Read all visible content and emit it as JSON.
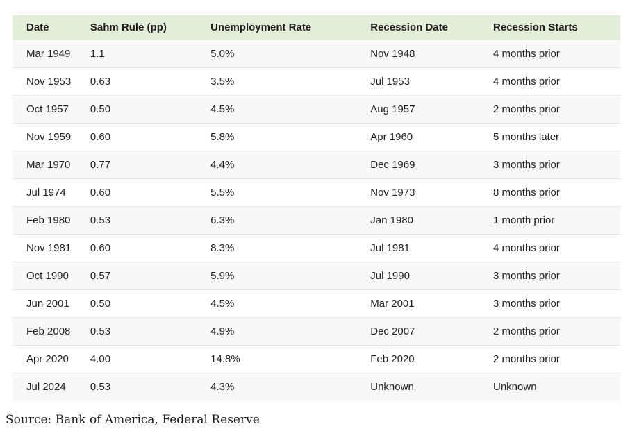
{
  "chart_data": {
    "type": "table",
    "columns": [
      "Date",
      "Sahm Rule (pp)",
      "Unemployment Rate",
      "Recession Date",
      "Recession Starts"
    ],
    "rows": [
      {
        "date": "Mar 1949",
        "sahm": "1.1",
        "unemployment": "5.0%",
        "recession_date": "Nov 1948",
        "recession_starts": "4 months prior"
      },
      {
        "date": "Nov 1953",
        "sahm": "0.63",
        "unemployment": "3.5%",
        "recession_date": "Jul 1953",
        "recession_starts": "4 months prior"
      },
      {
        "date": "Oct 1957",
        "sahm": "0.50",
        "unemployment": "4.5%",
        "recession_date": "Aug 1957",
        "recession_starts": "2 months prior"
      },
      {
        "date": "Nov 1959",
        "sahm": "0.60",
        "unemployment": "5.8%",
        "recession_date": "Apr 1960",
        "recession_starts": "5 months later"
      },
      {
        "date": "Mar 1970",
        "sahm": "0.77",
        "unemployment": "4.4%",
        "recession_date": "Dec 1969",
        "recession_starts": "3 months prior"
      },
      {
        "date": "Jul 1974",
        "sahm": "0.60",
        "unemployment": "5.5%",
        "recession_date": "Nov 1973",
        "recession_starts": "8 months prior"
      },
      {
        "date": "Feb 1980",
        "sahm": "0.53",
        "unemployment": "6.3%",
        "recession_date": "Jan 1980",
        "recession_starts": "1 month prior"
      },
      {
        "date": "Nov 1981",
        "sahm": "0.60",
        "unemployment": "8.3%",
        "recession_date": "Jul 1981",
        "recession_starts": "4 months prior"
      },
      {
        "date": "Oct 1990",
        "sahm": "0.57",
        "unemployment": "5.9%",
        "recession_date": "Jul 1990",
        "recession_starts": "3 months prior"
      },
      {
        "date": "Jun 2001",
        "sahm": "0.50",
        "unemployment": "4.5%",
        "recession_date": "Mar 2001",
        "recession_starts": "3 months prior"
      },
      {
        "date": "Feb 2008",
        "sahm": "0.53",
        "unemployment": "4.9%",
        "recession_date": "Dec 2007",
        "recession_starts": "2 months prior"
      },
      {
        "date": "Apr 2020",
        "sahm": "4.00",
        "unemployment": "14.8%",
        "recession_date": "Feb 2020",
        "recession_starts": "2 months prior"
      },
      {
        "date": "Jul 2024",
        "sahm": "0.53",
        "unemployment": "4.3%",
        "recession_date": "Unknown",
        "recession_starts": "Unknown"
      }
    ]
  },
  "source_note": "Source: Bank of America, Federal Reserve",
  "colors": {
    "header_bg": "#e3eeda",
    "row_alt_bg": "#f8f8f8",
    "row_divider": "#e6e6e6",
    "text": "#212121"
  }
}
